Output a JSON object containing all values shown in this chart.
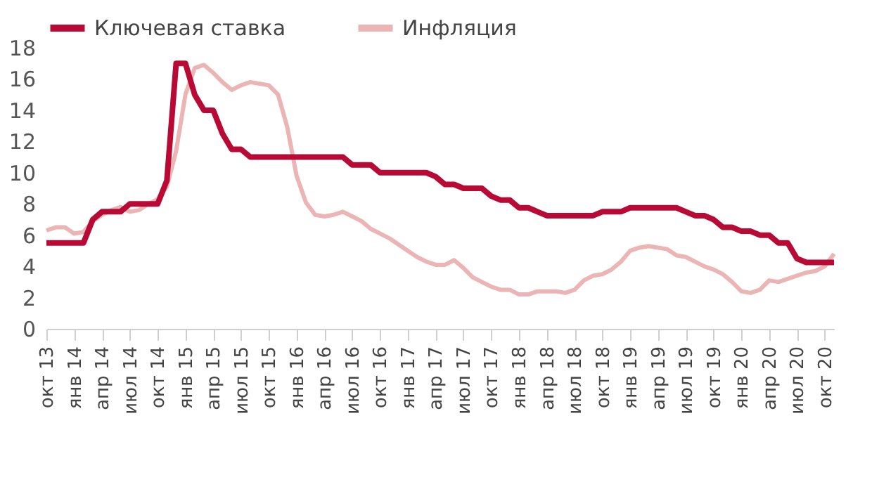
{
  "chart_data": {
    "type": "line",
    "categories": [
      "окт 13",
      null,
      null,
      "янв 14",
      null,
      null,
      "апр 14",
      null,
      null,
      "июл 14",
      null,
      null,
      "окт 14",
      null,
      null,
      "янв 15",
      null,
      null,
      "апр 15",
      null,
      null,
      "июл 15",
      null,
      null,
      "окт 15",
      null,
      null,
      "янв 16",
      null,
      null,
      "апр 16",
      null,
      null,
      "июл 16",
      null,
      null,
      "окт 16",
      null,
      null,
      "янв 17",
      null,
      null,
      "апр 17",
      null,
      null,
      "июл 17",
      null,
      null,
      "окт 17",
      null,
      null,
      "янв 18",
      null,
      null,
      "апр 18",
      null,
      null,
      "июл 18",
      null,
      null,
      "окт 18",
      null,
      null,
      "янв 19",
      null,
      null,
      "апр 19",
      null,
      null,
      "июл 19",
      null,
      null,
      "окт 19",
      null,
      null,
      "янв 20",
      null,
      null,
      "апр 20",
      null,
      null,
      "июл 20",
      null,
      null,
      "окт 20",
      null
    ],
    "series": [
      {
        "name": "Ключевая ставка",
        "color": "#b80a35",
        "values": [
          5.5,
          5.5,
          5.5,
          5.5,
          5.5,
          7.0,
          7.5,
          7.5,
          7.5,
          8.0,
          8.0,
          8.0,
          8.0,
          9.5,
          17,
          17,
          15,
          14,
          14,
          12.5,
          11.5,
          11.5,
          11,
          11,
          11,
          11,
          11,
          11,
          11,
          11,
          11,
          11,
          11,
          10.5,
          10.5,
          10.5,
          10,
          10,
          10,
          10,
          10,
          10,
          9.75,
          9.25,
          9.25,
          9,
          9,
          9,
          8.5,
          8.25,
          8.25,
          7.75,
          7.75,
          7.5,
          7.25,
          7.25,
          7.25,
          7.25,
          7.25,
          7.25,
          7.5,
          7.5,
          7.5,
          7.75,
          7.75,
          7.75,
          7.75,
          7.75,
          7.75,
          7.5,
          7.25,
          7.25,
          7.0,
          6.5,
          6.5,
          6.25,
          6.25,
          6.0,
          6.0,
          5.5,
          5.5,
          4.5,
          4.25,
          4.25,
          4.25,
          4.25
        ]
      },
      {
        "name": "Инфляция",
        "color": "#ebb5b5",
        "values": [
          6.3,
          6.5,
          6.5,
          6.1,
          6.2,
          6.9,
          7.3,
          7.6,
          7.8,
          7.5,
          7.6,
          8.0,
          8.3,
          9.1,
          11.4,
          15.0,
          16.7,
          16.9,
          16.4,
          15.8,
          15.3,
          15.6,
          15.8,
          15.7,
          15.6,
          15.0,
          12.9,
          9.8,
          8.1,
          7.3,
          7.2,
          7.3,
          7.5,
          7.2,
          6.9,
          6.4,
          6.1,
          5.8,
          5.4,
          5.0,
          4.6,
          4.3,
          4.1,
          4.1,
          4.4,
          3.9,
          3.3,
          3.0,
          2.7,
          2.5,
          2.5,
          2.2,
          2.2,
          2.4,
          2.4,
          2.4,
          2.3,
          2.5,
          3.1,
          3.4,
          3.5,
          3.8,
          4.3,
          5.0,
          5.2,
          5.3,
          5.2,
          5.1,
          4.7,
          4.6,
          4.3,
          4.0,
          3.8,
          3.5,
          3.0,
          2.4,
          2.3,
          2.5,
          3.1,
          3.0,
          3.2,
          3.4,
          3.6,
          3.7,
          4.0,
          4.8
        ]
      }
    ],
    "ylim": [
      0,
      18
    ],
    "yticks": [
      0,
      2,
      4,
      6,
      8,
      10,
      12,
      14,
      16,
      18
    ],
    "grid": false,
    "legend": "top",
    "marker": "none",
    "line_style": "solid"
  }
}
